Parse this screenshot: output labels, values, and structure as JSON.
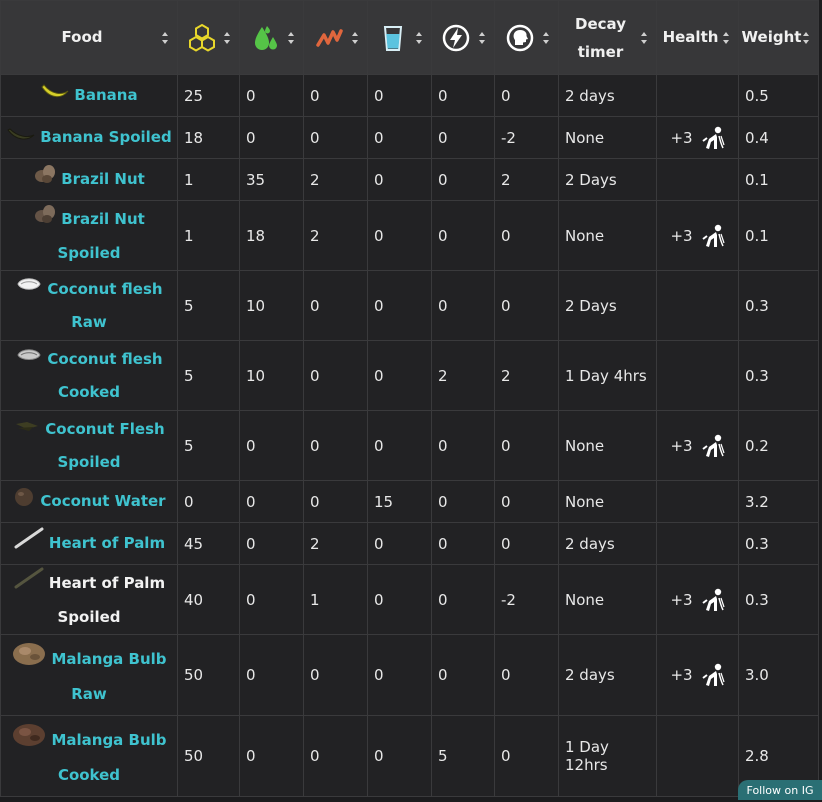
{
  "headers": {
    "food": "Food",
    "food_icon": "food-stat-hexagons-icon",
    "water_icon": "water-drops-icon",
    "stamina_icon": "stamina-zigzag-icon",
    "drink_icon": "glass-of-water-icon",
    "energy_icon": "lightning-bolt-icon",
    "mind_icon": "head-mind-icon",
    "decay": "Decay timer",
    "health": "Health",
    "weight": "Weight"
  },
  "colors": {
    "header_bg": "#373739",
    "row_bg": "#222224",
    "link": "#3fc3cf",
    "food_icon": "#e8d72b",
    "water_icon": "#55c447",
    "stamina_icon": "#e0663d",
    "drink_icon": "#5bc3df",
    "follow_bg": "#2a6f74"
  },
  "rows": [
    {
      "name": "Banana",
      "c1": "25",
      "c2": "0",
      "c3": "0",
      "c4": "0",
      "c5": "0",
      "c6": "0",
      "decay": "2 days",
      "health": "",
      "weight": "0.5"
    },
    {
      "name": "Banana Spoiled",
      "c1": "18",
      "c2": "0",
      "c3": "0",
      "c4": "0",
      "c5": "0",
      "c6": "-2",
      "decay": "None",
      "health": "+3",
      "weight": "0.4"
    },
    {
      "name": "Brazil Nut",
      "c1": "1",
      "c2": "35",
      "c3": "2",
      "c4": "0",
      "c5": "0",
      "c6": "2",
      "decay": "2 Days",
      "health": "",
      "weight": "0.1"
    },
    {
      "name": "Brazil Nut Spoiled",
      "c1": "1",
      "c2": "18",
      "c3": "2",
      "c4": "0",
      "c5": "0",
      "c6": "0",
      "decay": "None",
      "health": "+3",
      "weight": "0.1"
    },
    {
      "name": "Coconut flesh Raw",
      "c1": "5",
      "c2": "10",
      "c3": "0",
      "c4": "0",
      "c5": "0",
      "c6": "0",
      "decay": "2 Days",
      "health": "",
      "weight": "0.3"
    },
    {
      "name": "Coconut flesh Cooked",
      "c1": "5",
      "c2": "10",
      "c3": "0",
      "c4": "0",
      "c5": "2",
      "c6": "2",
      "decay": "1 Day 4hrs",
      "health": "",
      "weight": "0.3"
    },
    {
      "name": "Coconut Flesh Spoiled",
      "c1": "5",
      "c2": "0",
      "c3": "0",
      "c4": "0",
      "c5": "0",
      "c6": "0",
      "decay": "None",
      "health": "+3",
      "weight": "0.2"
    },
    {
      "name": "Coconut Water",
      "c1": "0",
      "c2": "0",
      "c3": "0",
      "c4": "15",
      "c5": "0",
      "c6": "0",
      "decay": "None",
      "health": "",
      "weight": "3.2"
    },
    {
      "name": "Heart of Palm",
      "c1": "45",
      "c2": "0",
      "c3": "2",
      "c4": "0",
      "c5": "0",
      "c6": "0",
      "decay": "2 days",
      "health": "",
      "weight": "0.3"
    },
    {
      "name": "Heart of Palm Spoiled",
      "c1": "40",
      "c2": "0",
      "c3": "1",
      "c4": "0",
      "c5": "0",
      "c6": "-2",
      "decay": "None",
      "health": "+3",
      "weight": "0.3"
    },
    {
      "name": "Malanga Bulb Raw",
      "c1": "50",
      "c2": "0",
      "c3": "0",
      "c4": "0",
      "c5": "0",
      "c6": "0",
      "decay": "2 days",
      "health": "+3",
      "weight": "3.0"
    },
    {
      "name": "Malanga Bulb Cooked",
      "c1": "50",
      "c2": "0",
      "c3": "0",
      "c4": "0",
      "c5": "5",
      "c6": "0",
      "decay": "1 Day 12hrs",
      "health": "",
      "weight": "2.8"
    }
  ],
  "row_icons": [
    "banana-icon",
    "spoiled-banana-icon",
    "brazil-nut-icon",
    "spoiled-brazil-nut-icon",
    "coconut-flesh-raw-icon",
    "coconut-flesh-cooked-icon",
    "coconut-flesh-spoiled-icon",
    "coconut-icon",
    "heart-of-palm-icon",
    "heart-of-palm-spoiled-icon",
    "malanga-bulb-raw-icon",
    "malanga-bulb-cooked-icon"
  ],
  "health_icon": "vomiting-person-icon",
  "follow": "Follow on IG"
}
